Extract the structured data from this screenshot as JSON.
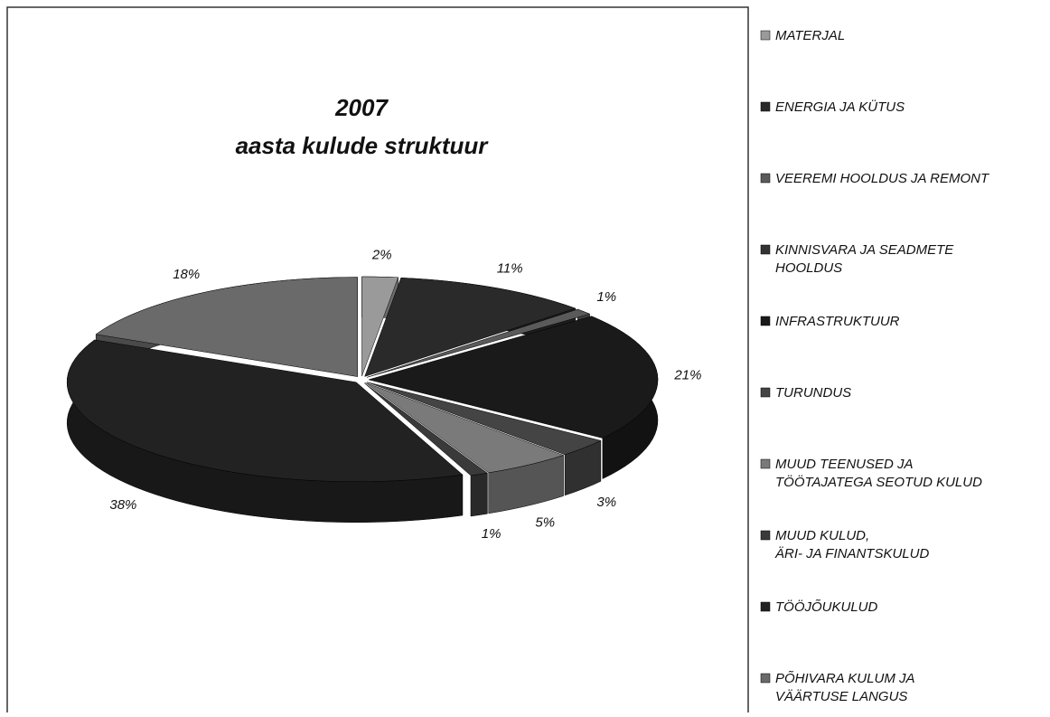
{
  "chart_data": {
    "type": "pie",
    "title": "2007",
    "subtitle": "aasta kulude struktuur",
    "categories": [
      "MATERJAL",
      "ENERGIA JA KÜTUS",
      "VEEREMI HOOLDUS JA REMONT",
      "KINNISVARA JA SEADMETE\nHOOLDUS",
      "INFRASTRUKTUUR",
      "TURUNDUS",
      "MUUD TEENUSED JA\nTÖÖTAJATEGA SEOTUD KULUD",
      "MUUD KULUD,\nÄRI- JA FINANTSKULUD",
      "TÖÖJÕUKULUD",
      "PÕHIVARA KULUM JA\nVÄÄRTUSE LANGUS"
    ],
    "values": [
      2,
      11,
      1,
      0,
      21,
      3,
      5,
      1,
      38,
      18
    ],
    "value_labels": [
      "2%",
      "11%",
      "1%",
      null,
      "21%",
      "3%",
      "5%",
      "1%",
      "38%",
      "18%"
    ],
    "colors": [
      "#9a9a9a",
      "#2a2a2a",
      "#5a5a5a",
      "#333333",
      "#1a1a1a",
      "#444444",
      "#7a7a7a",
      "#3a3a3a",
      "#222222",
      "#6a6a6a"
    ],
    "legend": "right"
  }
}
